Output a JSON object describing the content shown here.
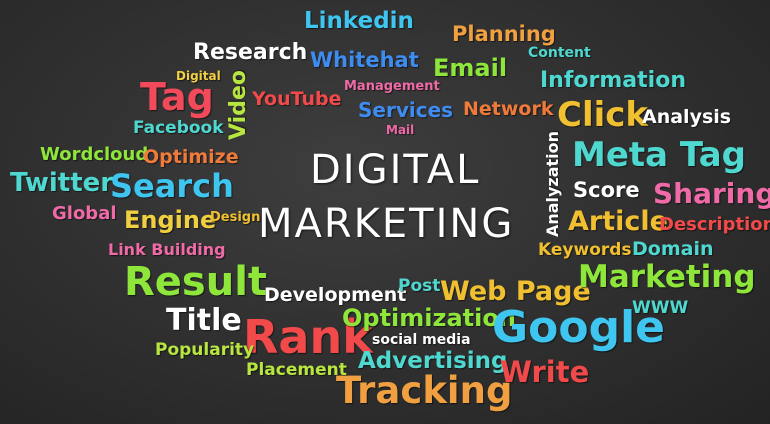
{
  "title": {
    "line1": "DIGITAL",
    "line2": "MARKETING"
  },
  "words": {
    "linkedin": {
      "text": "Linkedin",
      "color": "#3ec6f0"
    },
    "research": {
      "text": "Research",
      "color": "#ffffff"
    },
    "whitehat": {
      "text": "Whitehat",
      "color": "#3f8cf0"
    },
    "planning": {
      "text": "Planning",
      "color": "#f0a040"
    },
    "content": {
      "text": "Content",
      "color": "#4fd8d0"
    },
    "email": {
      "text": "Email",
      "color": "#8ee63a"
    },
    "information": {
      "text": "Information",
      "color": "#4fd8d0"
    },
    "digital_small": {
      "text": "Digital",
      "color": "#f0d040"
    },
    "tag": {
      "text": "Tag",
      "color": "#f24a5a"
    },
    "video": {
      "text": "Video",
      "color": "#b8e640"
    },
    "youtube": {
      "text": "YouTube",
      "color": "#f24a4a"
    },
    "management": {
      "text": "Management",
      "color": "#f06aa8"
    },
    "services": {
      "text": "Services",
      "color": "#3f8cf0"
    },
    "network": {
      "text": "Network",
      "color": "#f07a3a"
    },
    "click": {
      "text": "Click",
      "color": "#f0c030"
    },
    "analysis": {
      "text": "Analysis",
      "color": "#ffffff"
    },
    "facebook": {
      "text": "Facebook",
      "color": "#4fd8d0"
    },
    "mail": {
      "text": "Mail",
      "color": "#f06aa8"
    },
    "wordcloud": {
      "text": "Wordcloud",
      "color": "#8ee63a"
    },
    "optimize": {
      "text": "Optimize",
      "color": "#f07a3a"
    },
    "analyzation": {
      "text": "Analyzation",
      "color": "#ffffff"
    },
    "meta_tag": {
      "text": "Meta Tag",
      "color": "#4fd8d0"
    },
    "twitter": {
      "text": "Twitter",
      "color": "#4fd8d0"
    },
    "search": {
      "text": "Search",
      "color": "#3ec6f0"
    },
    "score": {
      "text": "Score",
      "color": "#ffffff"
    },
    "sharing": {
      "text": "Sharing",
      "color": "#f06aa8"
    },
    "global": {
      "text": "Global",
      "color": "#f06aa8"
    },
    "engine": {
      "text": "Engine",
      "color": "#f0d040"
    },
    "design": {
      "text": "Design",
      "color": "#f0c030"
    },
    "article": {
      "text": "Article",
      "color": "#f0c030"
    },
    "description": {
      "text": "Description",
      "color": "#f24a4a"
    },
    "link_building": {
      "text": "Link Building",
      "color": "#f06aa8"
    },
    "keywords": {
      "text": "Keywords",
      "color": "#f0c030"
    },
    "domain": {
      "text": "Domain",
      "color": "#4fd8d0"
    },
    "result": {
      "text": "Result",
      "color": "#8ee63a"
    },
    "development": {
      "text": "Development",
      "color": "#ffffff"
    },
    "post": {
      "text": "Post",
      "color": "#4fd8d0"
    },
    "web_page": {
      "text": "Web Page",
      "color": "#f0c030"
    },
    "marketing_small": {
      "text": "Marketing",
      "color": "#8ee63a"
    },
    "www": {
      "text": "WWW",
      "color": "#4fd8d0"
    },
    "title_word": {
      "text": "Title",
      "color": "#ffffff"
    },
    "rank": {
      "text": "Rank",
      "color": "#f24a4a"
    },
    "optimization": {
      "text": "Optimization",
      "color": "#8ee63a"
    },
    "google": {
      "text": "Google",
      "color": "#3ec6f0"
    },
    "popularity": {
      "text": "Popularity",
      "color": "#b8e640"
    },
    "social_media": {
      "text": "social media",
      "color": "#ffffff"
    },
    "advertising": {
      "text": "Advertising",
      "color": "#4fd8d0"
    },
    "write": {
      "text": "Write",
      "color": "#f24a4a"
    },
    "placement": {
      "text": "Placement",
      "color": "#b8e640"
    },
    "tracking": {
      "text": "Tracking",
      "color": "#f0a040"
    }
  }
}
